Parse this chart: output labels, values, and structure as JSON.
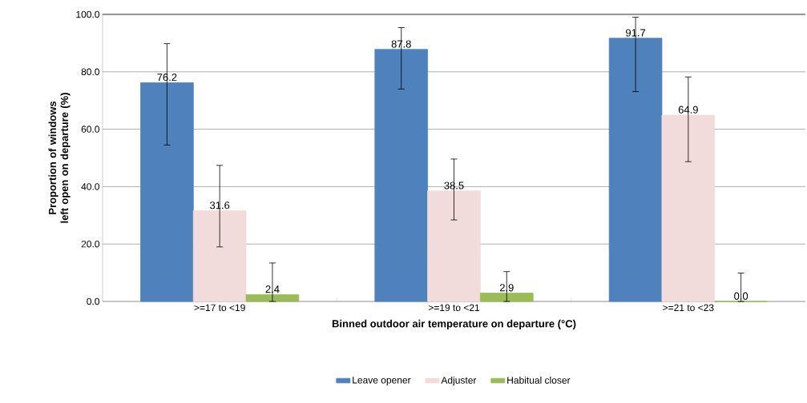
{
  "chart_data": {
    "type": "bar",
    "xlabel": "Binned outdoor air temperature on departure (°C)",
    "ylabel": "Proportion of windows left open on departure (%)",
    "categories": [
      ">=17 to <19",
      ">=19 to <21",
      ">=21 to <23"
    ],
    "series": [
      {
        "name": "Leave opener",
        "color": "#4f81bd",
        "values": [
          76.2,
          87.8,
          91.7
        ],
        "value_labels": [
          "76.2",
          "87.8",
          "91.7"
        ],
        "errors": [
          [
            54.5,
            89.8
          ],
          [
            74.0,
            95.4
          ],
          [
            73.1,
            99.0
          ]
        ]
      },
      {
        "name": "Adjuster",
        "color": "#f2dcdb",
        "values": [
          31.6,
          38.5,
          64.9
        ],
        "value_labels": [
          "31.6",
          "38.5",
          "64.9"
        ],
        "errors": [
          [
            19.0,
            47.4
          ],
          [
            28.4,
            49.6
          ],
          [
            48.7,
            78.2
          ]
        ]
      },
      {
        "name": "Habitual closer",
        "color": "#9bbb59",
        "values": [
          2.4,
          2.9,
          0
        ],
        "value_labels": [
          "2.4",
          "2.9",
          "0.0"
        ],
        "errors": [
          [
            0,
            13.4
          ],
          [
            0,
            10.4
          ],
          [
            0,
            9.9
          ]
        ]
      }
    ],
    "ylim": [
      0,
      100
    ],
    "yticks": [
      {
        "value": 0,
        "label": "0.0"
      },
      {
        "value": 20,
        "label": "20.0"
      },
      {
        "value": 40,
        "label": "40.0"
      },
      {
        "value": 60,
        "label": "60.0"
      },
      {
        "value": 80,
        "label": "80.0"
      },
      {
        "value": 100,
        "label": "100.0"
      }
    ],
    "grid": "y",
    "legend": "bottom"
  }
}
